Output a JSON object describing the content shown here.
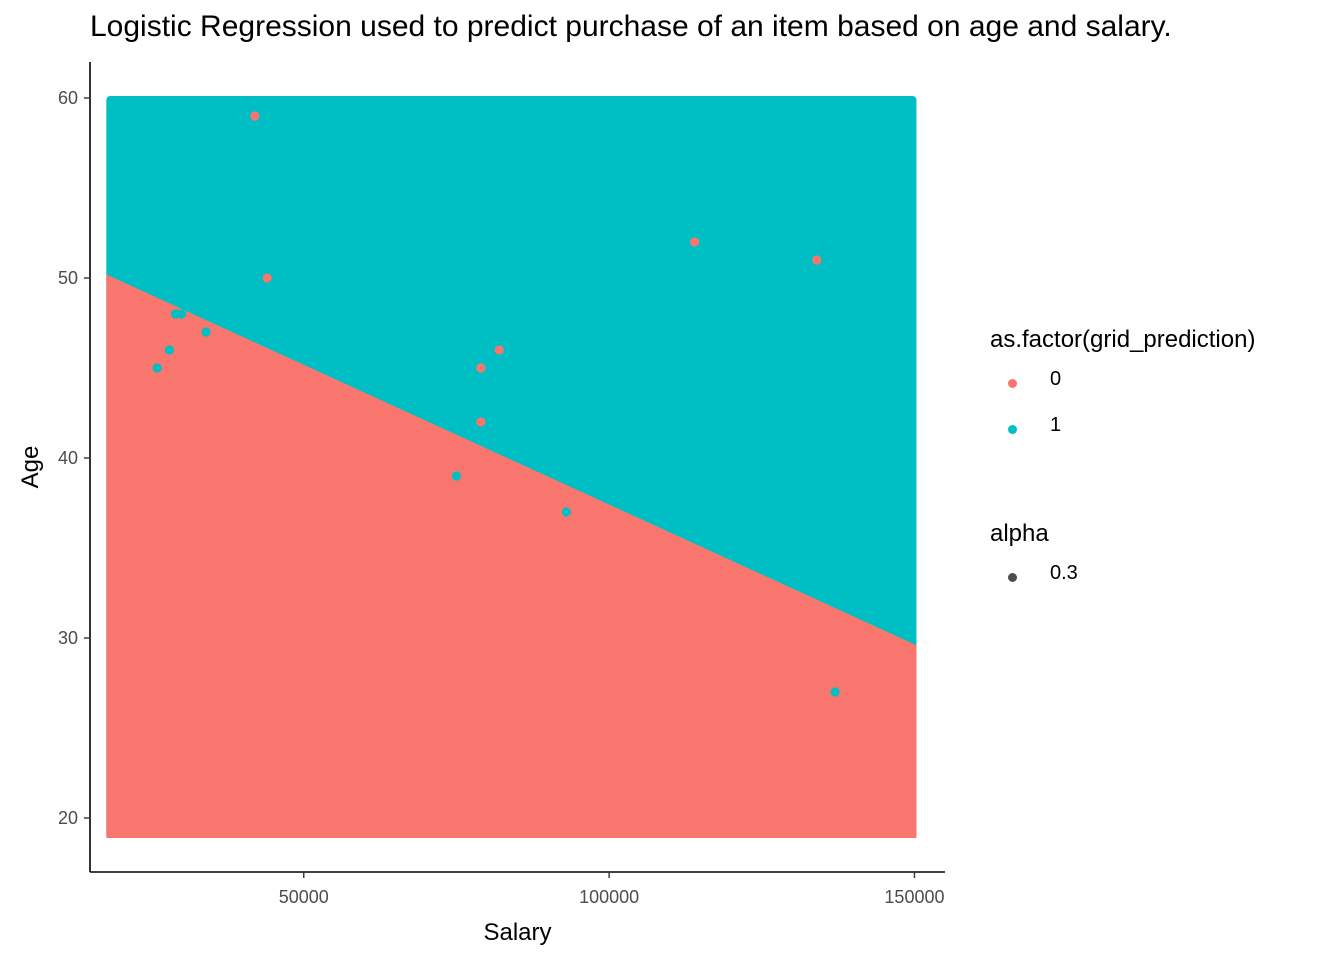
{
  "title": "Logistic Regression used to predict purchase of an item based on age and salary.",
  "legend": {
    "fill_title": "as.factor(grid_prediction)",
    "fill_items": [
      {
        "label": "0",
        "color": "#F8766D"
      },
      {
        "label": "1",
        "color": "#00BFC4"
      }
    ],
    "alpha_title": "alpha",
    "alpha_items": [
      {
        "label": "0.3",
        "color": "#4d4d4d"
      }
    ]
  },
  "chart_data": {
    "type": "scatter",
    "title": "Logistic Regression used to predict purchase of an item based on age and salary.",
    "xlabel": "Salary",
    "ylabel": "Age",
    "xlim": [
      15000,
      155000
    ],
    "ylim": [
      17,
      62
    ],
    "xticks": [
      50000,
      100000,
      150000
    ],
    "yticks": [
      20,
      30,
      40,
      50,
      60
    ],
    "grid": false,
    "legend_position": "right",
    "decision_region": {
      "x_range": [
        18000,
        150000
      ],
      "y_range": [
        19,
        60
      ],
      "boundary": [
        {
          "x": 18000,
          "y": 50.2
        },
        {
          "x": 150000,
          "y": 29.6
        }
      ],
      "above_class": "1",
      "below_class": "0"
    },
    "series": [
      {
        "name": "0",
        "color": "#F8766D",
        "points": [
          {
            "x": 42000,
            "y": 59
          },
          {
            "x": 44000,
            "y": 50
          },
          {
            "x": 82000,
            "y": 46
          },
          {
            "x": 79000,
            "y": 45
          },
          {
            "x": 79000,
            "y": 42
          },
          {
            "x": 114000,
            "y": 52
          },
          {
            "x": 134000,
            "y": 51
          }
        ]
      },
      {
        "name": "1",
        "color": "#00BFC4",
        "points": [
          {
            "x": 29000,
            "y": 48
          },
          {
            "x": 30000,
            "y": 48
          },
          {
            "x": 34000,
            "y": 47
          },
          {
            "x": 28000,
            "y": 46
          },
          {
            "x": 26000,
            "y": 45
          },
          {
            "x": 75000,
            "y": 39
          },
          {
            "x": 93000,
            "y": 37
          },
          {
            "x": 137000,
            "y": 27
          }
        ]
      }
    ]
  }
}
